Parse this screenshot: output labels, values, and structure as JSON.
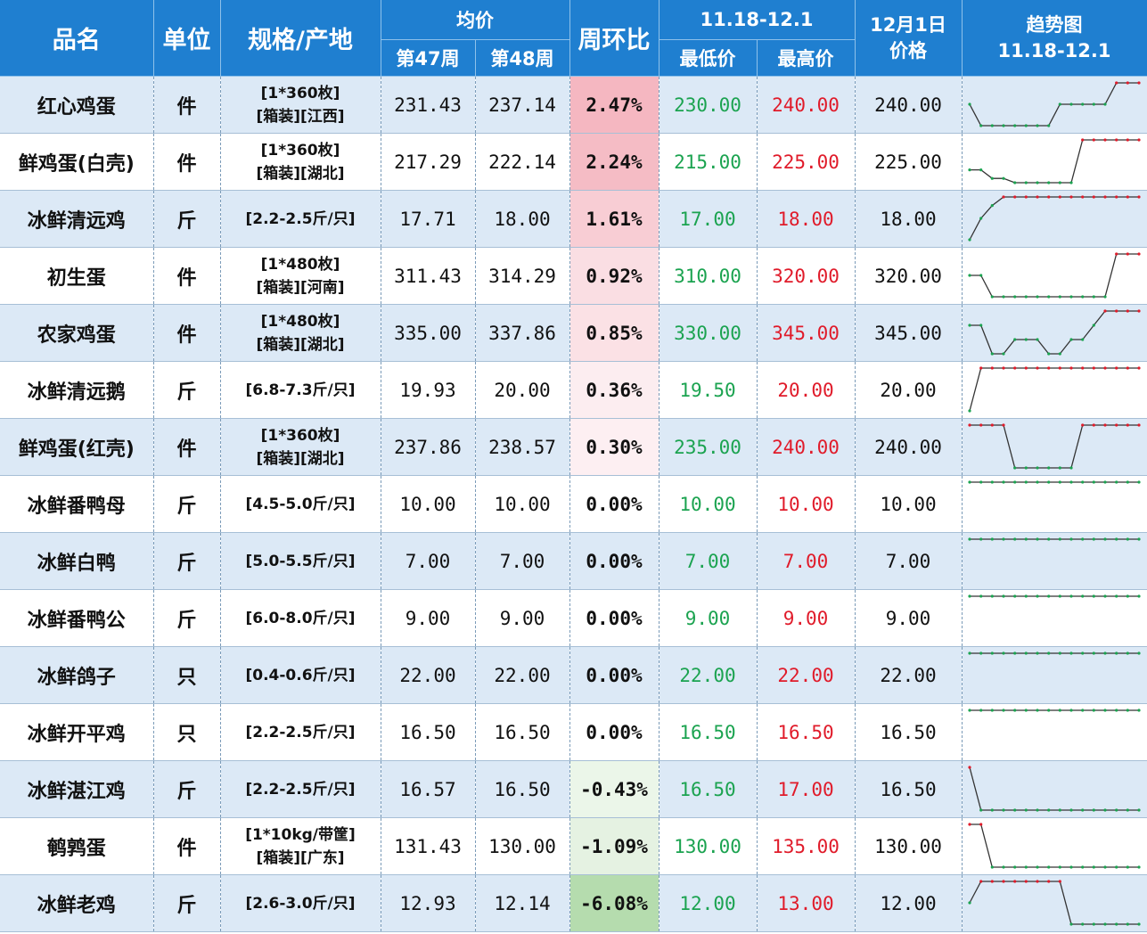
{
  "header": {
    "name": "品名",
    "unit": "单位",
    "spec": "规格/产地",
    "avg": "均价",
    "week47": "第47周",
    "week48": "第48周",
    "change": "周环比",
    "range_title": "11.18-12.1",
    "low": "最低价",
    "high": "最高价",
    "dec1_line1": "12月1日",
    "dec1_line2": "价格",
    "trend_line1": "趋势图",
    "trend_line2": "11.18-12.1"
  },
  "colors": {
    "header_bg": "#1f7fd0",
    "low_text": "#1ba350",
    "high_text": "#e01b2a",
    "trend_line": "#333333",
    "trend_high_marker": "#e01b2a",
    "trend_low_marker": "#1ba350"
  },
  "rows": [
    {
      "name": "红心鸡蛋",
      "unit": "件",
      "spec1": "[1*360枚]",
      "spec2": "[箱装][江西]",
      "w47": "231.43",
      "w48": "237.14",
      "change": "2.47%",
      "change_value": 2.47,
      "low": "230.00",
      "high": "240.00",
      "dec1": "240.00",
      "trend": [
        235,
        230,
        230,
        230,
        230,
        230,
        230,
        230,
        235,
        235,
        235,
        235,
        235,
        240,
        240,
        240
      ]
    },
    {
      "name": "鲜鸡蛋(白壳)",
      "unit": "件",
      "spec1": "[1*360枚]",
      "spec2": "[箱装][湖北]",
      "w47": "217.29",
      "w48": "222.14",
      "change": "2.24%",
      "change_value": 2.24,
      "low": "215.00",
      "high": "225.00",
      "dec1": "225.00",
      "trend": [
        218,
        218,
        216,
        216,
        215,
        215,
        215,
        215,
        215,
        215,
        225,
        225,
        225,
        225,
        225,
        225
      ]
    },
    {
      "name": "冰鲜清远鸡",
      "unit": "斤",
      "spec1": "[2.2-2.5斤/只]",
      "spec2": "",
      "w47": "17.71",
      "w48": "18.00",
      "change": "1.61%",
      "change_value": 1.61,
      "low": "17.00",
      "high": "18.00",
      "dec1": "18.00",
      "trend": [
        17,
        17.5,
        17.8,
        18,
        18,
        18,
        18,
        18,
        18,
        18,
        18,
        18,
        18,
        18,
        18,
        18
      ]
    },
    {
      "name": "初生蛋",
      "unit": "件",
      "spec1": "[1*480枚]",
      "spec2": "[箱装][河南]",
      "w47": "311.43",
      "w48": "314.29",
      "change": "0.92%",
      "change_value": 0.92,
      "low": "310.00",
      "high": "320.00",
      "dec1": "320.00",
      "trend": [
        315,
        315,
        310,
        310,
        310,
        310,
        310,
        310,
        310,
        310,
        310,
        310,
        310,
        320,
        320,
        320
      ]
    },
    {
      "name": "农家鸡蛋",
      "unit": "件",
      "spec1": "[1*480枚]",
      "spec2": "[箱装][湖北]",
      "w47": "335.00",
      "w48": "337.86",
      "change": "0.85%",
      "change_value": 0.85,
      "low": "330.00",
      "high": "345.00",
      "dec1": "345.00",
      "trend": [
        340,
        340,
        330,
        330,
        335,
        335,
        335,
        330,
        330,
        335,
        335,
        340,
        345,
        345,
        345,
        345
      ]
    },
    {
      "name": "冰鲜清远鹅",
      "unit": "斤",
      "spec1": "[6.8-7.3斤/只]",
      "spec2": "",
      "w47": "19.93",
      "w48": "20.00",
      "change": "0.36%",
      "change_value": 0.36,
      "low": "19.50",
      "high": "20.00",
      "dec1": "20.00",
      "trend": [
        19.5,
        20,
        20,
        20,
        20,
        20,
        20,
        20,
        20,
        20,
        20,
        20,
        20,
        20,
        20,
        20
      ]
    },
    {
      "name": "鲜鸡蛋(红壳)",
      "unit": "件",
      "spec1": "[1*360枚]",
      "spec2": "[箱装][湖北]",
      "w47": "237.86",
      "w48": "238.57",
      "change": "0.30%",
      "change_value": 0.3,
      "low": "235.00",
      "high": "240.00",
      "dec1": "240.00",
      "trend": [
        240,
        240,
        240,
        240,
        235,
        235,
        235,
        235,
        235,
        235,
        240,
        240,
        240,
        240,
        240,
        240
      ]
    },
    {
      "name": "冰鲜番鸭母",
      "unit": "斤",
      "spec1": "[4.5-5.0斤/只]",
      "spec2": "",
      "w47": "10.00",
      "w48": "10.00",
      "change": "0.00%",
      "change_value": 0.0,
      "low": "10.00",
      "high": "10.00",
      "dec1": "10.00",
      "trend": [
        10,
        10,
        10,
        10,
        10,
        10,
        10,
        10,
        10,
        10,
        10,
        10,
        10,
        10,
        10,
        10
      ]
    },
    {
      "name": "冰鲜白鸭",
      "unit": "斤",
      "spec1": "[5.0-5.5斤/只]",
      "spec2": "",
      "w47": "7.00",
      "w48": "7.00",
      "change": "0.00%",
      "change_value": 0.0,
      "low": "7.00",
      "high": "7.00",
      "dec1": "7.00",
      "trend": [
        7,
        7,
        7,
        7,
        7,
        7,
        7,
        7,
        7,
        7,
        7,
        7,
        7,
        7,
        7,
        7
      ]
    },
    {
      "name": "冰鲜番鸭公",
      "unit": "斤",
      "spec1": "[6.0-8.0斤/只]",
      "spec2": "",
      "w47": "9.00",
      "w48": "9.00",
      "change": "0.00%",
      "change_value": 0.0,
      "low": "9.00",
      "high": "9.00",
      "dec1": "9.00",
      "trend": [
        9,
        9,
        9,
        9,
        9,
        9,
        9,
        9,
        9,
        9,
        9,
        9,
        9,
        9,
        9,
        9
      ]
    },
    {
      "name": "冰鲜鸽子",
      "unit": "只",
      "spec1": "[0.4-0.6斤/只]",
      "spec2": "",
      "w47": "22.00",
      "w48": "22.00",
      "change": "0.00%",
      "change_value": 0.0,
      "low": "22.00",
      "high": "22.00",
      "dec1": "22.00",
      "trend": [
        22,
        22,
        22,
        22,
        22,
        22,
        22,
        22,
        22,
        22,
        22,
        22,
        22,
        22,
        22,
        22
      ]
    },
    {
      "name": "冰鲜开平鸡",
      "unit": "只",
      "spec1": "[2.2-2.5斤/只]",
      "spec2": "",
      "w47": "16.50",
      "w48": "16.50",
      "change": "0.00%",
      "change_value": 0.0,
      "low": "16.50",
      "high": "16.50",
      "dec1": "16.50",
      "trend": [
        16.5,
        16.5,
        16.5,
        16.5,
        16.5,
        16.5,
        16.5,
        16.5,
        16.5,
        16.5,
        16.5,
        16.5,
        16.5,
        16.5,
        16.5,
        16.5
      ]
    },
    {
      "name": "冰鲜湛江鸡",
      "unit": "斤",
      "spec1": "[2.2-2.5斤/只]",
      "spec2": "",
      "w47": "16.57",
      "w48": "16.50",
      "change": "-0.43%",
      "change_value": -0.43,
      "low": "16.50",
      "high": "17.00",
      "dec1": "16.50",
      "trend": [
        17,
        16.5,
        16.5,
        16.5,
        16.5,
        16.5,
        16.5,
        16.5,
        16.5,
        16.5,
        16.5,
        16.5,
        16.5,
        16.5,
        16.5,
        16.5
      ]
    },
    {
      "name": "鹌鹑蛋",
      "unit": "件",
      "spec1": "[1*10kg/带筐]",
      "spec2": "[箱装][广东]",
      "w47": "131.43",
      "w48": "130.00",
      "change": "-1.09%",
      "change_value": -1.09,
      "low": "130.00",
      "high": "135.00",
      "dec1": "130.00",
      "trend": [
        135,
        135,
        130,
        130,
        130,
        130,
        130,
        130,
        130,
        130,
        130,
        130,
        130,
        130,
        130,
        130
      ]
    },
    {
      "name": "冰鲜老鸡",
      "unit": "斤",
      "spec1": "[2.6-3.0斤/只]",
      "spec2": "",
      "w47": "12.93",
      "w48": "12.14",
      "change": "-6.08%",
      "change_value": -6.08,
      "low": "12.00",
      "high": "13.00",
      "dec1": "12.00",
      "trend": [
        12.5,
        13,
        13,
        13,
        13,
        13,
        13,
        13,
        13,
        12,
        12,
        12,
        12,
        12,
        12,
        12
      ]
    }
  ]
}
